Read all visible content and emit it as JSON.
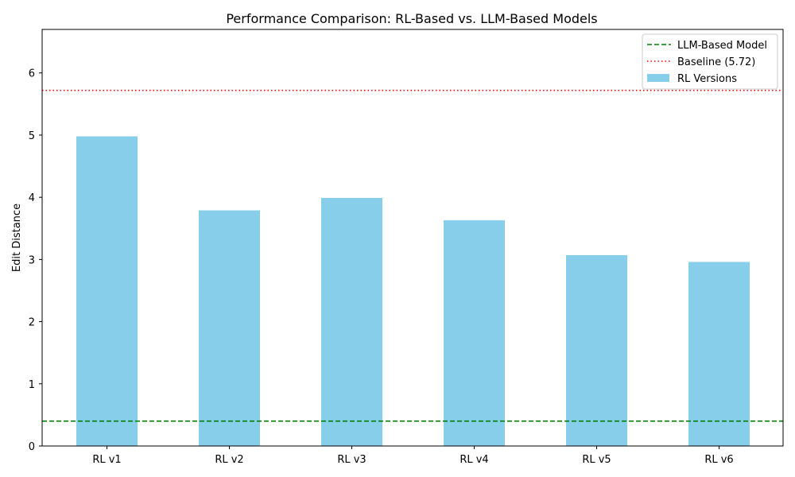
{
  "chart_data": {
    "type": "bar",
    "title": "Performance Comparison: RL-Based vs. LLM-Based Models",
    "xlabel": "",
    "ylabel": "Edit Distance",
    "categories": [
      "RL v1",
      "RL v2",
      "RL v3",
      "RL v4",
      "RL v5",
      "RL v6"
    ],
    "series": [
      {
        "name": "RL Versions",
        "values": [
          4.98,
          3.79,
          3.99,
          3.63,
          3.07,
          2.96
        ],
        "color": "#87ceeb"
      }
    ],
    "reference_lines": [
      {
        "name": "LLM-Based Model",
        "value": 0.4,
        "color": "#008000",
        "style": "dashed"
      },
      {
        "name": "Baseline (5.72)",
        "value": 5.72,
        "color": "#ff0000",
        "style": "dotted"
      }
    ],
    "ylim": [
      0,
      6.7
    ],
    "yticks": [
      0,
      1,
      2,
      3,
      4,
      5,
      6
    ],
    "grid": false,
    "legend_position": "top-right"
  }
}
